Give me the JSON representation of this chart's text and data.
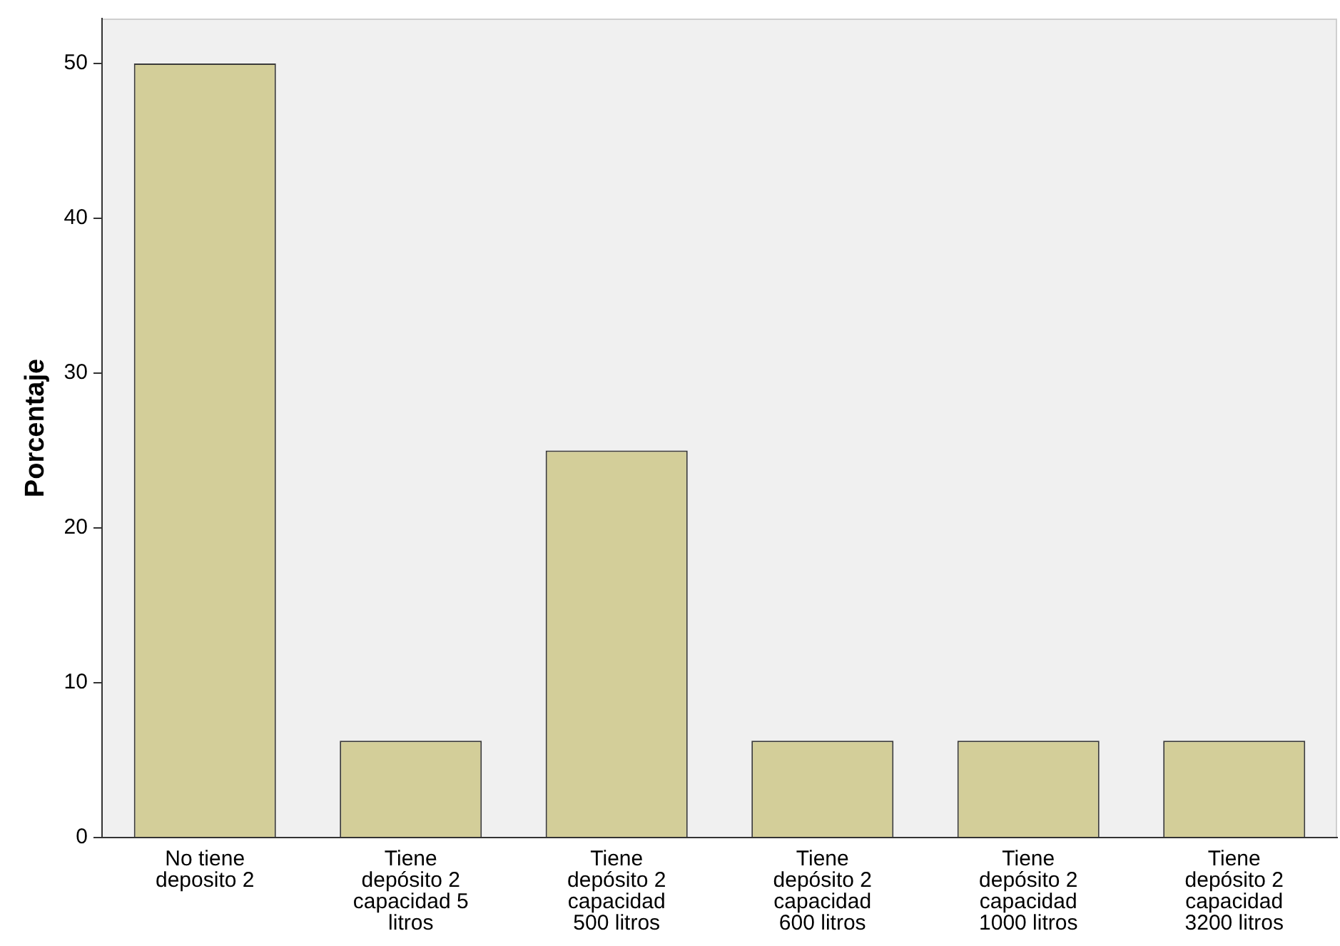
{
  "chart_data": {
    "type": "bar",
    "ylabel": "Porcentaje",
    "categories": [
      "No tiene deposito 2",
      "Tiene depósito 2 capacidad 5 litros",
      "Tiene depósito 2 capacidad 500 litros",
      "Tiene depósito 2 capacidad 600 litros",
      "Tiene depósito 2 capacidad 1000 litros",
      "Tiene depósito 2 capacidad 3200 litros"
    ],
    "values": [
      50,
      6.25,
      25,
      6.25,
      6.25,
      6.25
    ],
    "color": "#d3ce99",
    "ylim": [
      0,
      52.9
    ],
    "yticks": [
      0,
      10,
      20,
      30,
      40,
      50
    ],
    "grid": false,
    "legend": false
  }
}
